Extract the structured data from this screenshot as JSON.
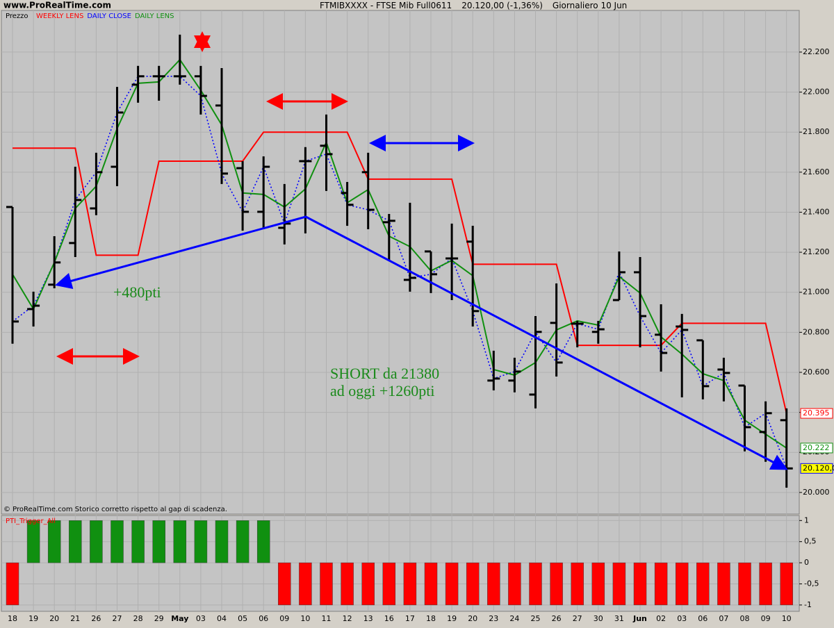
{
  "header": {
    "site": "www.ProRealTime.com",
    "title": "FTMIBXXXX - FTSE Mib Full0611",
    "quote": "20.120,00 (-1,36%)",
    "period": "Giornaliero  10 Jun"
  },
  "footer": "© ProRealTime.com  Storico corretto rispetto al gap di scadenza.",
  "annotations": [
    "+480pti",
    "SHORT da 21380",
    "ad oggi +1260pti"
  ],
  "chart_data": [
    {
      "type": "ohlc",
      "y_label": "Prezzo",
      "categories": [
        "18",
        "19",
        "20",
        "21",
        "26",
        "27",
        "28",
        "29",
        "May",
        "03",
        "04",
        "05",
        "06",
        "09",
        "10",
        "11",
        "12",
        "13",
        "16",
        "17",
        "18",
        "19",
        "20",
        "23",
        "24",
        "25",
        "26",
        "27",
        "30",
        "31",
        "Jun",
        "02",
        "03",
        "06",
        "07",
        "08",
        "09",
        "10"
      ],
      "open": [
        21426,
        20916,
        21038,
        21246,
        21419,
        21627,
        22037,
        22079,
        22079,
        22079,
        21933,
        21620,
        21402,
        21322,
        21655,
        21732,
        21496,
        21600,
        21350,
        21062,
        21204,
        21169,
        21253,
        20559,
        20559,
        20489,
        20847,
        20843,
        20802,
        20961,
        21100,
        20788,
        20829,
        20760,
        20614,
        20534,
        20302,
        20361
      ],
      "high": [
        21426,
        21003,
        21280,
        21627,
        21697,
        22026,
        22131,
        22131,
        22287,
        22131,
        22120,
        21655,
        21679,
        21541,
        21725,
        21888,
        21551,
        21697,
        21391,
        21447,
        21204,
        21343,
        21332,
        20708,
        20673,
        20881,
        21044,
        20857,
        20857,
        21204,
        21176,
        20940,
        20892,
        20760,
        20673,
        20534,
        20455,
        20420
      ],
      "low": [
        20743,
        20829,
        21020,
        21176,
        21385,
        21530,
        21947,
        21957,
        22037,
        21888,
        21541,
        21308,
        21315,
        21239,
        21294,
        21506,
        21332,
        21315,
        21159,
        21003,
        20996,
        20961,
        20829,
        20510,
        20500,
        20420,
        20579,
        20725,
        20743,
        20961,
        20725,
        20604,
        20475,
        20465,
        20455,
        20205,
        20153,
        20024
      ],
      "bar_color": "#000000",
      "series": [
        {
          "name": "WEEKLY LENS",
          "color": "#ff0000",
          "style": "solid",
          "last_label": "20.395",
          "values": [
            21720,
            21720,
            21720,
            21720,
            21185,
            21185,
            21185,
            21655,
            21655,
            21655,
            21655,
            21655,
            21800,
            21800,
            21800,
            21800,
            21800,
            21565,
            21565,
            21565,
            21565,
            21565,
            21140,
            21140,
            21140,
            21140,
            21140,
            20735,
            20735,
            20735,
            20735,
            20735,
            20845,
            20845,
            20845,
            20845,
            20845,
            20395
          ]
        },
        {
          "name": "DAILY CLOSE",
          "color": "#0000ff",
          "style": "dotted",
          "last_label": "20.120,0",
          "values": [
            20854,
            20933,
            21149,
            21461,
            21600,
            21898,
            22079,
            22079,
            22079,
            21981,
            21593,
            21402,
            21627,
            21343,
            21655,
            21690,
            21437,
            21412,
            21357,
            21072,
            21090,
            21169,
            20906,
            20569,
            20604,
            20802,
            20649,
            20843,
            20815,
            21100,
            20881,
            20697,
            20812,
            20531,
            20597,
            20326,
            20396,
            20120
          ]
        },
        {
          "name": "DAILY LENS",
          "color": "#109010",
          "style": "solid",
          "last_label": "20.222",
          "values": [
            21090,
            20916,
            21149,
            21419,
            21530,
            21818,
            22044,
            22051,
            22162,
            22009,
            21836,
            21496,
            21489,
            21426,
            21516,
            21749,
            21447,
            21513,
            21280,
            21228,
            21107,
            21159,
            21083,
            20614,
            20586,
            20649,
            20812,
            20857,
            20836,
            21079,
            20996,
            20777,
            20691,
            20593,
            20559,
            20361,
            20291,
            20222
          ]
        }
      ],
      "ylim": [
        19892,
        22408
      ],
      "yticks": [
        {
          "value": 20000,
          "label": "20.000"
        },
        {
          "value": 20200,
          "label": "20.200"
        },
        {
          "value": 20400,
          "label": "20.400"
        },
        {
          "value": 20600,
          "label": "20.600"
        },
        {
          "value": 20800,
          "label": "20.800"
        },
        {
          "value": 21000,
          "label": "21.000"
        },
        {
          "value": 21200,
          "label": "21.200"
        },
        {
          "value": 21400,
          "label": "21.400"
        },
        {
          "value": 21600,
          "label": "21.600"
        },
        {
          "value": 21800,
          "label": "21.800"
        },
        {
          "value": 22000,
          "label": "22.000"
        },
        {
          "value": 22200,
          "label": "22.200"
        }
      ],
      "grid": true
    },
    {
      "type": "bar",
      "title": "PTI_Trigger_All",
      "values": [
        -1,
        1,
        1,
        1,
        1,
        1,
        1,
        1,
        1,
        1,
        1,
        1,
        1,
        -1,
        -1,
        -1,
        -1,
        -1,
        -1,
        -1,
        -1,
        -1,
        -1,
        -1,
        -1,
        -1,
        -1,
        -1,
        -1,
        -1,
        -1,
        -1,
        -1,
        -1,
        -1,
        -1,
        -1,
        -1
      ],
      "positive_color": "#109010",
      "negative_color": "#ff0000",
      "ylim": [
        -1.15,
        1.12
      ],
      "yticks": [
        -1,
        {
          "value": -0.5,
          "label": "-0,5"
        },
        0,
        {
          "value": 0.5,
          "label": "0,5"
        },
        1
      ],
      "grid": true
    }
  ]
}
